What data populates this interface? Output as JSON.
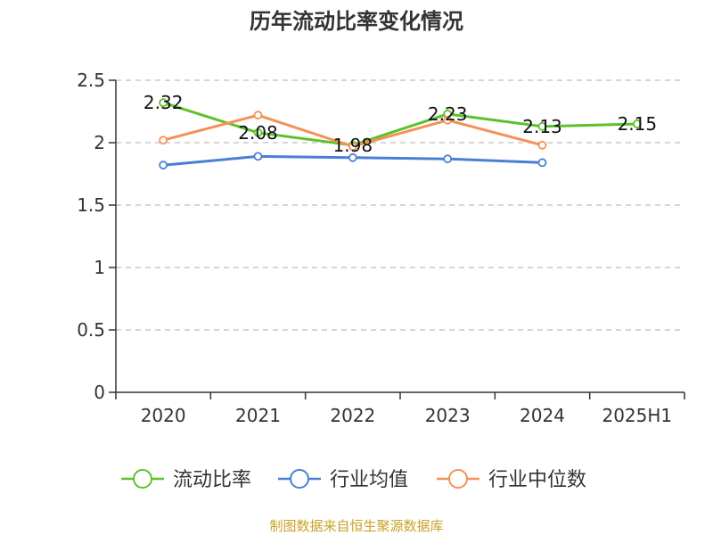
{
  "chart_data": {
    "type": "line",
    "title": "历年流动比率变化情况",
    "categories": [
      "2020",
      "2021",
      "2022",
      "2023",
      "2024",
      "2025H1"
    ],
    "ylim": [
      0,
      2.5
    ],
    "yticks": [
      "0",
      "0.5",
      "1",
      "1.5",
      "2",
      "2.5"
    ],
    "grid": true,
    "legend_position": "bottom",
    "series": [
      {
        "name": "流动比率",
        "color": "#5cc22b",
        "values": [
          2.32,
          2.08,
          1.98,
          2.23,
          2.13,
          2.15
        ],
        "labels": [
          "2.32",
          "2.08",
          "1.98",
          "2.23",
          "2.13",
          "2.15"
        ]
      },
      {
        "name": "行业均值",
        "color": "#4a7fd6",
        "values": [
          1.82,
          1.89,
          1.88,
          1.87,
          1.84,
          null
        ]
      },
      {
        "name": "行业中位数",
        "color": "#f59158",
        "values": [
          2.02,
          2.22,
          1.97,
          2.18,
          1.98,
          null
        ]
      }
    ]
  },
  "source_text": "制图数据来自恒生聚源数据库"
}
